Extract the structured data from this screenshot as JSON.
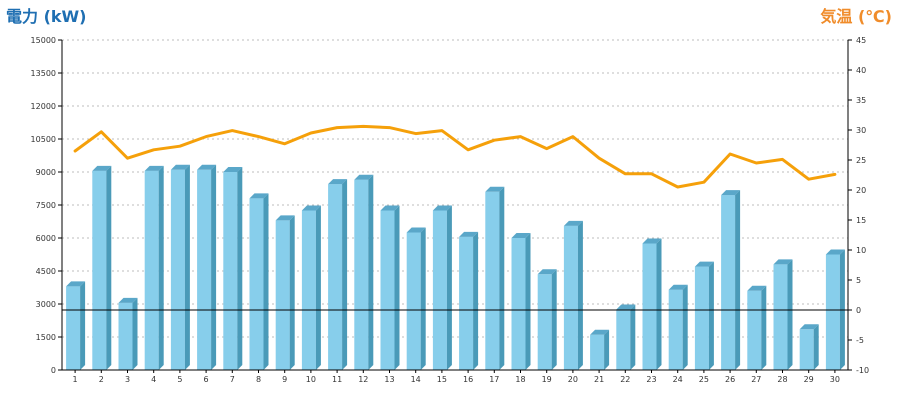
{
  "left_title": "電力 (kW)",
  "right_title": "気温 (℃)",
  "colors": {
    "left_title": "#1f6fb2",
    "right_title": "#f08c2a",
    "bar_front": "#87CEEB",
    "bar_side": "#4a9ab8",
    "bar_top": "#5aa7c9",
    "line": "#f5a00a",
    "grid": "#bdbdbd",
    "baseline": "#000000"
  },
  "chart_data": {
    "type": "bar",
    "categories": [
      "1",
      "2",
      "3",
      "4",
      "5",
      "6",
      "7",
      "8",
      "9",
      "10",
      "11",
      "12",
      "13",
      "14",
      "15",
      "16",
      "17",
      "18",
      "19",
      "20",
      "21",
      "22",
      "23",
      "24",
      "25",
      "26",
      "27",
      "28",
      "29",
      "30"
    ],
    "series": [
      {
        "axis": "left",
        "type": "bar",
        "values": [
          3800,
          9050,
          3050,
          9050,
          9100,
          9100,
          9000,
          7800,
          6800,
          7250,
          8450,
          8650,
          7250,
          6250,
          7250,
          6050,
          8100,
          6000,
          4350,
          6550,
          1600,
          2750,
          5750,
          3650,
          4700,
          7950,
          3600,
          4800,
          1850,
          5250
        ]
      },
      {
        "axis": "right",
        "type": "line",
        "values": [
          26.5,
          29.7,
          25.3,
          26.7,
          27.3,
          28.9,
          29.9,
          28.9,
          27.7,
          29.5,
          30.4,
          30.6,
          30.4,
          29.4,
          29.9,
          26.7,
          28.3,
          28.9,
          26.9,
          28.9,
          25.3,
          22.7,
          22.7,
          20.5,
          21.3,
          26.0,
          24.5,
          25.1,
          21.8,
          22.6
        ]
      }
    ],
    "y_left": {
      "min": 0,
      "max": 15000,
      "ticks": [
        "0",
        "1500",
        "3000",
        "4500",
        "6000",
        "7500",
        "9000",
        "10500",
        "12000",
        "13500",
        "15000"
      ]
    },
    "y_right": {
      "min": -10,
      "max": 45,
      "ticks": [
        "-10",
        "-5",
        "0",
        "5",
        "10",
        "15",
        "20",
        "25",
        "30",
        "35",
        "40",
        "45"
      ]
    },
    "reference_line": {
      "axis": "right",
      "value": 0
    },
    "grid": true,
    "legend": "none"
  }
}
